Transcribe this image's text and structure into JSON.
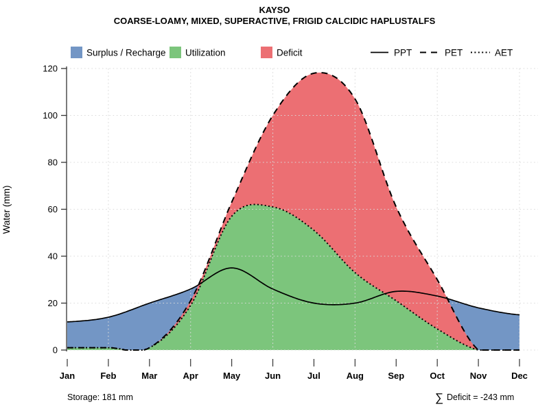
{
  "title": "KAYSO",
  "subtitle": "COARSE-LOAMY, MIXED, SUPERACTIVE, FRIGID CALCIDIC HAPLUSTALFS",
  "legend": {
    "surplus_label": "Surplus / Recharge",
    "utilization_label": "Utilization",
    "deficit_label": "Deficit",
    "ppt_label": "PPT",
    "pet_label": "PET",
    "aet_label": "AET"
  },
  "colors": {
    "surplus": "#7396C5",
    "utilization": "#7CC57C",
    "deficit": "#EC6F73",
    "grid": "#DADADA",
    "axis": "#333333",
    "line": "#000000"
  },
  "footer": {
    "storage": "Storage: 181 mm",
    "sigma": "∑",
    "deficit_total": "Deficit = -243 mm"
  },
  "chart_data": {
    "type": "area",
    "title": "KAYSO",
    "subtitle": "COARSE-LOAMY, MIXED, SUPERACTIVE, FRIGID CALCIDIC HAPLUSTALFS",
    "categories": [
      "Jan",
      "Feb",
      "Mar",
      "Apr",
      "May",
      "Jun",
      "Jul",
      "Aug",
      "Sep",
      "Oct",
      "Nov",
      "Dec"
    ],
    "series": [
      {
        "name": "PPT",
        "style": "solid",
        "values": [
          12,
          14,
          20,
          26,
          35,
          26,
          20,
          20,
          25,
          23,
          18,
          15
        ]
      },
      {
        "name": "PET",
        "style": "dashed",
        "values": [
          1,
          1,
          1,
          21,
          63,
          100,
          118,
          107,
          61,
          30,
          0,
          0
        ]
      },
      {
        "name": "AET",
        "style": "dotted",
        "values": [
          1,
          1,
          1,
          19,
          57,
          61,
          51,
          33,
          21,
          9,
          0,
          0
        ]
      }
    ],
    "areas": [
      {
        "label": "Surplus / Recharge",
        "rule": "area under PPT (visible where PPT exceeds AET)"
      },
      {
        "label": "Utilization",
        "rule": "area under AET"
      },
      {
        "label": "Deficit",
        "rule": "area between AET and PET"
      }
    ],
    "xlabel": "",
    "ylabel": "Water (mm)",
    "ylim": [
      0,
      120
    ],
    "yticks": [
      0,
      20,
      40,
      60,
      80,
      100,
      120
    ],
    "grid": true,
    "legend_position": "top",
    "annotations": {
      "storage": "Storage: 181 mm",
      "total_deficit": "∑ Deficit = -243 mm",
      "pet_peak_mm": 119.5,
      "aet_peak_mm": 61.5
    }
  }
}
